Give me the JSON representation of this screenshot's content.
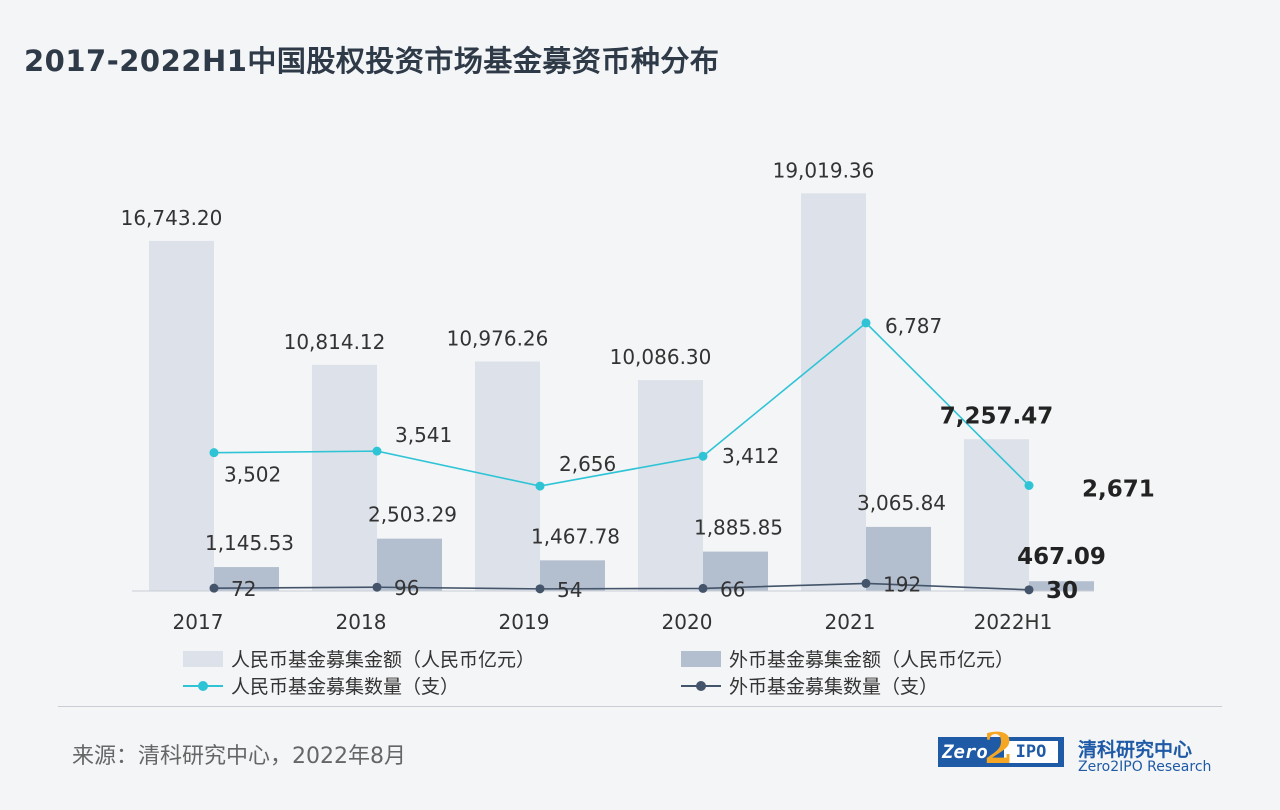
{
  "title": "2017-2022H1中国股权投资市场基金募资币种分布",
  "source": "来源：清科研究中心，2022年8月",
  "brand": {
    "logo_left": "Zero",
    "logo_num": "2",
    "logo_right": "IPO",
    "name_cn": "清科研究中心",
    "name_en": "Zero2IPO Research"
  },
  "colors": {
    "rmb_bar": "#dde1e9",
    "fx_bar": "#b3bfcf",
    "rmb_line": "#2ec4d6",
    "fx_line": "#44546a"
  },
  "chart_data": {
    "type": "bar",
    "categories": [
      "2017",
      "2018",
      "2019",
      "2020",
      "2021",
      "2022H1"
    ],
    "bar_max": 22000,
    "line_max": 10000,
    "series": [
      {
        "name": "人民币基金募集金额（人民币亿元）",
        "kind": "bar",
        "values": [
          16743.2,
          10814.12,
          10976.26,
          10086.3,
          19019.36,
          7257.47
        ],
        "labels": [
          "16,743.20",
          "10,814.12",
          "10,976.26",
          "10,086.30",
          "19,019.36",
          "7,257.47"
        ]
      },
      {
        "name": "外币基金募集金额（人民币亿元）",
        "kind": "bar",
        "values": [
          1145.53,
          2503.29,
          1467.78,
          1885.85,
          3065.84,
          467.09
        ],
        "labels": [
          "1,145.53",
          "2,503.29",
          "1,467.78",
          "1,885.85",
          "3,065.84",
          "467.09"
        ]
      },
      {
        "name": "人民币基金募集数量（支）",
        "kind": "line",
        "values": [
          3502,
          3541,
          2656,
          3412,
          6787,
          2671
        ],
        "labels": [
          "3,502",
          "3,541",
          "2,656",
          "3,412",
          "6,787",
          "2,671"
        ]
      },
      {
        "name": "外币基金募集数量（支）",
        "kind": "line",
        "values": [
          72,
          96,
          54,
          66,
          192,
          30
        ],
        "labels": [
          "72",
          "96",
          "54",
          "66",
          "192",
          "30"
        ]
      }
    ]
  }
}
